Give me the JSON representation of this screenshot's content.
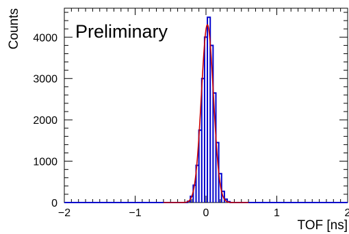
{
  "chart_data": {
    "type": "histogram",
    "xlabel": "TOF [ns]",
    "ylabel": "Counts",
    "annotation": "Preliminary",
    "xlim": [
      -2,
      2
    ],
    "ylim": [
      0,
      4700
    ],
    "x_ticks": [
      -2,
      -1,
      0,
      1,
      2
    ],
    "x_tick_labels": [
      "−2",
      "−1",
      "0",
      "1",
      "2"
    ],
    "y_ticks": [
      0,
      1000,
      2000,
      3000,
      4000
    ],
    "y_tick_labels": [
      "0",
      "1000",
      "2000",
      "3000",
      "4000"
    ],
    "bin_width": 0.04,
    "series": [
      {
        "kind": "histogram",
        "color": "#0000cc",
        "bins": [
          {
            "x": -0.24,
            "y": 30
          },
          {
            "x": -0.2,
            "y": 150
          },
          {
            "x": -0.16,
            "y": 420
          },
          {
            "x": -0.12,
            "y": 900
          },
          {
            "x": -0.08,
            "y": 1750
          },
          {
            "x": -0.04,
            "y": 3000
          },
          {
            "x": 0.0,
            "y": 4000
          },
          {
            "x": 0.04,
            "y": 4480
          },
          {
            "x": 0.08,
            "y": 3800
          },
          {
            "x": 0.12,
            "y": 2650
          },
          {
            "x": 0.16,
            "y": 1450
          },
          {
            "x": 0.2,
            "y": 700
          },
          {
            "x": 0.24,
            "y": 270
          },
          {
            "x": 0.28,
            "y": 80
          },
          {
            "x": 0.32,
            "y": 20
          }
        ]
      },
      {
        "kind": "fit",
        "color": "#cc0000",
        "function": "gaussian",
        "amplitude": 4300,
        "mean": 0.02,
        "sigma": 0.085
      }
    ]
  }
}
